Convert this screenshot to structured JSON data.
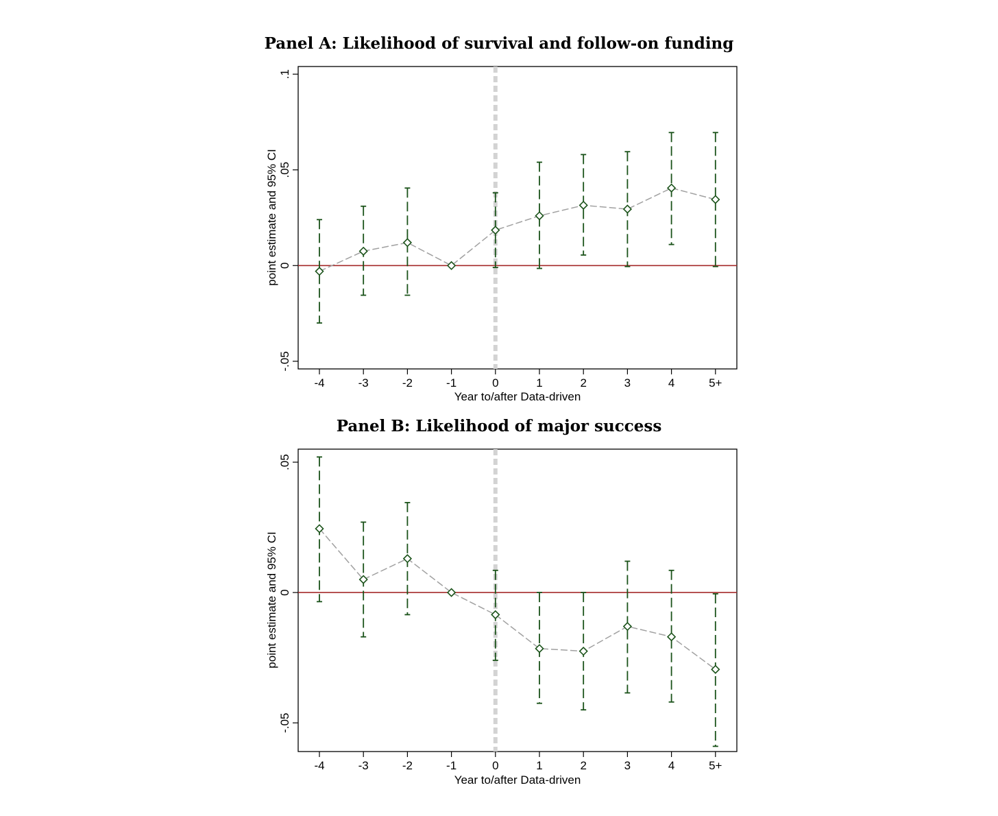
{
  "chart_data": [
    {
      "type": "scatter",
      "title": "Panel A: Likelihood of survival and follow-on funding",
      "xlabel": "Year to/after Data-driven",
      "ylabel": "point estimate and 95% CI",
      "categories": [
        "-4",
        "-3",
        "-2",
        "-1",
        "0",
        "1",
        "2",
        "3",
        "4",
        "5+"
      ],
      "ytick_labels": [
        "-.05",
        "0",
        ".05",
        ".1"
      ],
      "yticks": [
        -0.05,
        0,
        0.05,
        0.1
      ],
      "ylim": [
        -0.054,
        0.104
      ],
      "reference_line_y": 0,
      "event_line_x": "0",
      "series": [
        {
          "estimate": [
            -0.003,
            0.0075,
            0.012,
            0.0,
            0.0185,
            0.026,
            0.0315,
            0.0295,
            0.0405,
            0.0345
          ],
          "ci_low": [
            -0.03,
            -0.0155,
            -0.0155,
            0.0,
            -0.001,
            -0.0015,
            0.0055,
            -0.0005,
            0.011,
            -0.0005
          ],
          "ci_high": [
            0.024,
            0.031,
            0.0405,
            0.0,
            0.038,
            0.054,
            0.058,
            0.0595,
            0.0695,
            0.0695
          ]
        }
      ],
      "colors": {
        "estimate_line": "#a0a0a0",
        "ci": "#1a5219",
        "marker": "#1a5219",
        "zero_line": "#a52a2a",
        "event_line": "#d3d3d3"
      },
      "grid": false
    },
    {
      "type": "scatter",
      "title": "Panel B: Likelihood of major success",
      "xlabel": "Year to/after Data-driven",
      "ylabel": "point estimate and 95% CI",
      "categories": [
        "-4",
        "-3",
        "-2",
        "-1",
        "0",
        "1",
        "2",
        "3",
        "4",
        "5+"
      ],
      "ytick_labels": [
        "-.05",
        "0",
        ".05"
      ],
      "yticks": [
        -0.05,
        0,
        0.05
      ],
      "ylim": [
        -0.061,
        0.055
      ],
      "reference_line_y": 0,
      "event_line_x": "0",
      "series": [
        {
          "estimate": [
            0.0245,
            0.005,
            0.013,
            0.0,
            -0.0085,
            -0.0215,
            -0.0225,
            -0.013,
            -0.017,
            -0.0295
          ],
          "ci_low": [
            -0.0035,
            -0.017,
            -0.0085,
            0.0,
            -0.026,
            -0.0425,
            -0.045,
            -0.0385,
            -0.042,
            -0.059
          ],
          "ci_high": [
            0.052,
            0.027,
            0.0345,
            0.0,
            0.0085,
            0.0,
            0.0,
            0.012,
            0.0085,
            -0.0005
          ]
        }
      ],
      "colors": {
        "estimate_line": "#a0a0a0",
        "ci": "#1a5219",
        "marker": "#1a5219",
        "zero_line": "#a52a2a",
        "event_line": "#d3d3d3"
      },
      "grid": false
    }
  ]
}
